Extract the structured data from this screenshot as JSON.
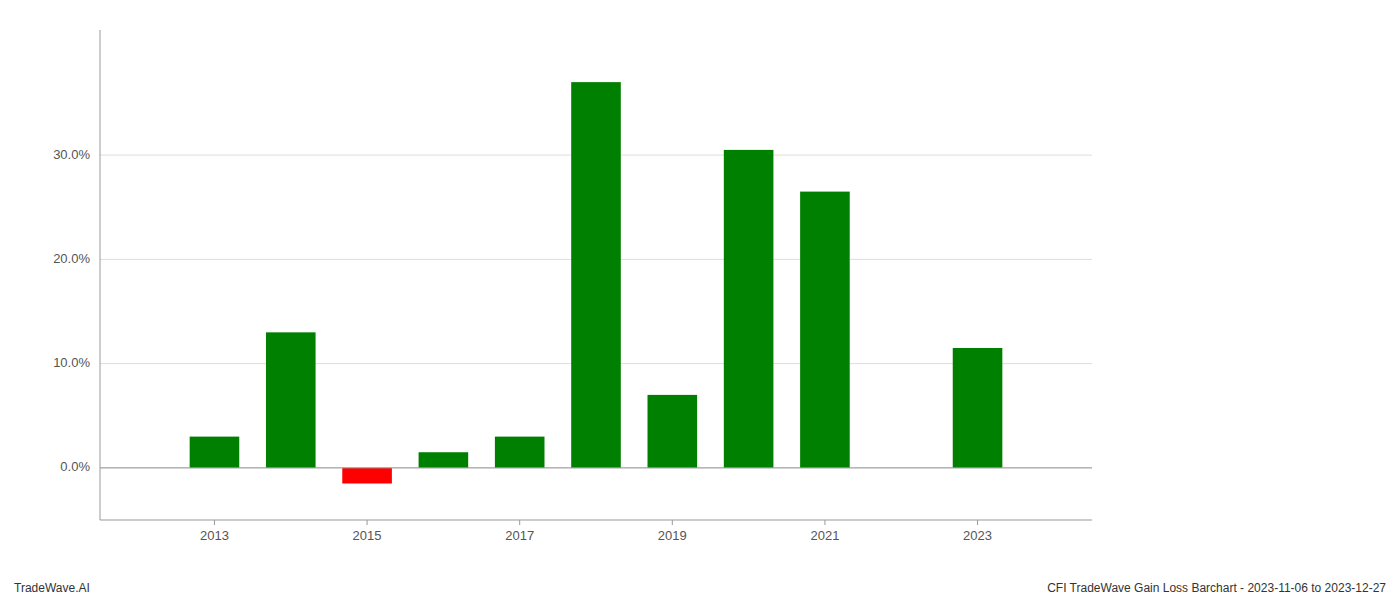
{
  "chart_data": {
    "type": "bar",
    "x": [
      2013,
      2014,
      2015,
      2016,
      2017,
      2018,
      2019,
      2020,
      2021,
      2022,
      2023
    ],
    "values": [
      3.0,
      13.0,
      -1.5,
      1.5,
      3.0,
      37.0,
      7.0,
      30.5,
      26.5,
      0.0,
      11.5
    ],
    "colors": [
      "#008000",
      "#008000",
      "#ff0000",
      "#008000",
      "#008000",
      "#008000",
      "#008000",
      "#008000",
      "#008000",
      "#008000",
      "#008000"
    ],
    "xlim": [
      2011.5,
      2024.5
    ],
    "xticks": [
      2013,
      2015,
      2017,
      2019,
      2021,
      2023
    ],
    "ylim": [
      -5,
      42
    ],
    "yticks": [
      {
        "value": 0.0,
        "label": "0.0%"
      },
      {
        "value": 10.0,
        "label": "10.0%"
      },
      {
        "value": 20.0,
        "label": "20.0%"
      },
      {
        "value": 30.0,
        "label": "30.0%"
      }
    ],
    "grid": true,
    "annotations": [
      "TradeWave.AI",
      "CFI TradeWave Gain Loss Barchart - 2023-11-06 to 2023-12-27"
    ]
  }
}
